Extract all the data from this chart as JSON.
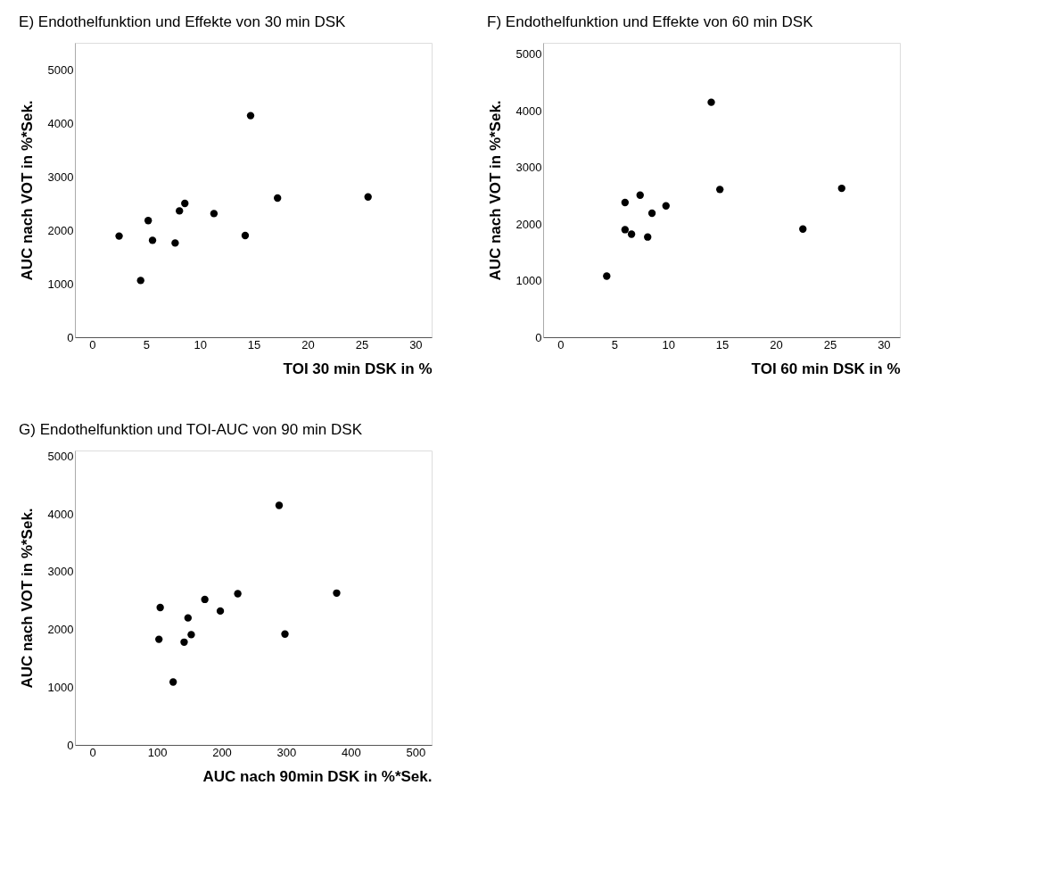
{
  "chart_data": [
    {
      "type": "scatter",
      "title": "E) Endothelfunktion und Effekte von 30 min DSK",
      "xlabel": "TOI 30 min DSK in %",
      "ylabel": "AUC nach VOT in %*Sek.",
      "marker": "circle",
      "grid": false,
      "x": [
        2.5,
        4.5,
        5.2,
        5.6,
        7.7,
        8.1,
        8.6,
        11.3,
        14.2,
        14.7,
        17.2,
        25.6
      ],
      "series": [
        {
          "color": "#000000",
          "values": [
            1890,
            1060,
            2180,
            1810,
            1760,
            2360,
            2500,
            2310,
            1900,
            4140,
            2600,
            2620
          ]
        }
      ],
      "xlim": [
        -1.6,
        31.5
      ],
      "xticks": [
        0,
        5,
        10,
        15,
        20,
        25,
        30
      ],
      "ylim": [
        0,
        5500
      ],
      "yticks": [
        0,
        1000,
        2000,
        3000,
        4000,
        5000
      ]
    },
    {
      "type": "scatter",
      "title": "F) Endothelfunktion und Effekte von 60 min DSK",
      "xlabel": "TOI 60 min DSK in %",
      "ylabel": "AUC nach VOT in %*Sek.",
      "marker": "circle",
      "grid": false,
      "x": [
        4.3,
        6.0,
        6.0,
        6.6,
        7.4,
        8.1,
        8.5,
        9.8,
        14.0,
        14.8,
        22.5,
        26.1
      ],
      "series": [
        {
          "color": "#000000",
          "values": [
            1080,
            2380,
            1900,
            1820,
            2510,
            1770,
            2190,
            2320,
            4150,
            2610,
            1910,
            2630
          ]
        }
      ],
      "xlim": [
        -1.6,
        31.5
      ],
      "xticks": [
        0,
        5,
        10,
        15,
        20,
        25,
        30
      ],
      "ylim": [
        0,
        5200
      ],
      "yticks": [
        0,
        1000,
        2000,
        3000,
        4000,
        5000
      ]
    },
    {
      "type": "scatter",
      "title": "G) Endothelfunktion und TOI-AUC von 90 min DSK",
      "xlabel": "AUC nach 90min DSK in %*Sek.",
      "ylabel": "AUC nach VOT in %*Sek.",
      "marker": "circle",
      "grid": false,
      "x": [
        105,
        103,
        125,
        142,
        148,
        153,
        174,
        198,
        225,
        289,
        298,
        378
      ],
      "series": [
        {
          "color": "#000000",
          "values": [
            2380,
            1830,
            1090,
            1780,
            2200,
            1910,
            2520,
            2320,
            2620,
            4150,
            1920,
            2630
          ]
        }
      ],
      "xlim": [
        -27,
        525
      ],
      "xticks": [
        0,
        100,
        200,
        300,
        400,
        500
      ],
      "ylim": [
        0,
        5100
      ],
      "yticks": [
        0,
        1000,
        2000,
        3000,
        4000,
        5000
      ]
    }
  ]
}
